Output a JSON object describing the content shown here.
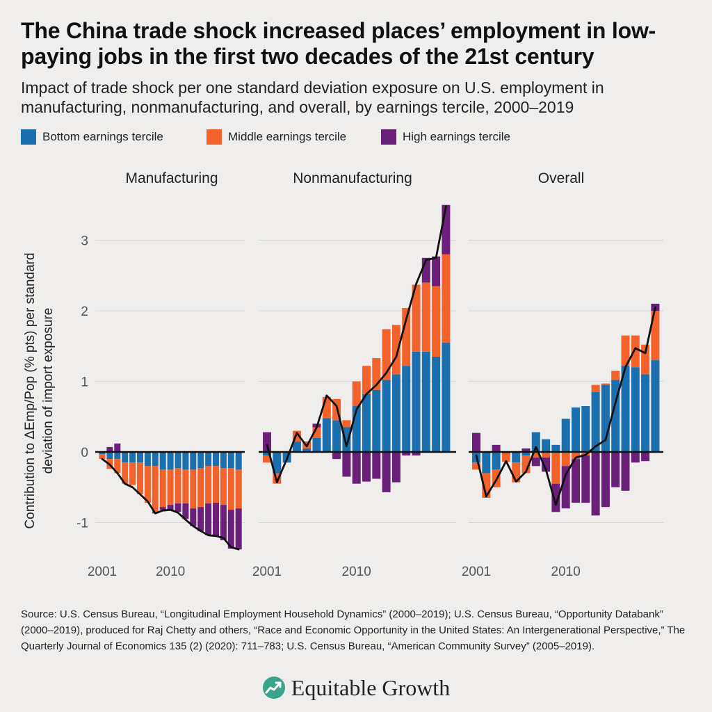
{
  "chart_data": {
    "type": "bar",
    "stacked": true,
    "title": "The China trade shock increased places’ employment in low-paying jobs in the first two decades of the 21st century",
    "subtitle": "Impact of trade shock per one standard deviation exposure on U.S. employment in manufacturing, nonmanufacturing, and overall, by earnings tercile, 2000–2019",
    "ylabel": "Contribution to ΔEmp/Pop (% pts) per standard deviation of import exposure",
    "legend": "top-left",
    "grid": true,
    "x": [
      2001,
      2002,
      2003,
      2004,
      2005,
      2006,
      2007,
      2008,
      2009,
      2010,
      2011,
      2012,
      2013,
      2014,
      2015,
      2016,
      2017,
      2018,
      2019
    ],
    "xticks": [
      2001,
      2010
    ],
    "yticks": [
      -1,
      0,
      1,
      2,
      3
    ],
    "ylim": [
      -1.45,
      3.5
    ],
    "series": [
      {
        "name": "Bottom earnings tercile",
        "color": "#1b6fae"
      },
      {
        "name": "Middle earnings tercile",
        "color": "#f4622b"
      },
      {
        "name": "High earnings tercile",
        "color": "#6a1f79"
      }
    ],
    "line_color": "#111111",
    "panels": [
      {
        "title": "Manufacturing",
        "values": [
          [
            -0.03,
            -0.1,
            -0.1,
            -0.15,
            -0.15,
            -0.15,
            -0.2,
            -0.2,
            -0.25,
            -0.25,
            -0.23,
            -0.25,
            -0.25,
            -0.23,
            -0.2,
            -0.2,
            -0.23,
            -0.23,
            -0.25
          ],
          [
            -0.07,
            -0.14,
            -0.2,
            -0.3,
            -0.32,
            -0.45,
            -0.52,
            -0.65,
            -0.53,
            -0.5,
            -0.5,
            -0.48,
            -0.55,
            -0.55,
            -0.53,
            -0.52,
            -0.52,
            -0.59,
            -0.55
          ],
          [
            0.0,
            0.07,
            0.12,
            0.0,
            0.0,
            0.0,
            0.0,
            -0.02,
            -0.04,
            -0.08,
            -0.12,
            -0.22,
            -0.25,
            -0.34,
            -0.45,
            -0.48,
            -0.5,
            -0.55,
            -0.58
          ]
        ],
        "total": [
          -0.1,
          -0.18,
          -0.3,
          -0.45,
          -0.5,
          -0.6,
          -0.7,
          -0.87,
          -0.83,
          -0.82,
          -0.86,
          -0.96,
          -1.05,
          -1.12,
          -1.18,
          -1.19,
          -1.22,
          -1.35,
          -1.38
        ]
      },
      {
        "title": "Nonmanufacturing",
        "values": [
          [
            -0.05,
            -0.3,
            -0.15,
            0.15,
            0.05,
            0.2,
            0.48,
            0.45,
            0.35,
            0.65,
            0.82,
            0.88,
            1.02,
            1.1,
            1.22,
            1.42,
            1.42,
            1.35,
            1.55
          ],
          [
            -0.1,
            -0.15,
            0.0,
            0.15,
            0.1,
            0.15,
            0.3,
            0.3,
            0.1,
            0.35,
            0.4,
            0.45,
            0.72,
            0.7,
            0.82,
            0.95,
            0.98,
            1.0,
            1.25
          ],
          [
            0.28,
            0.0,
            0.0,
            0.0,
            0.0,
            0.05,
            0.0,
            -0.1,
            -0.35,
            -0.45,
            -0.42,
            -0.38,
            -0.57,
            -0.43,
            -0.05,
            -0.05,
            0.35,
            0.42,
            0.7
          ]
        ],
        "total": [
          0.1,
          -0.43,
          -0.1,
          0.27,
          0.08,
          0.35,
          0.8,
          0.65,
          0.08,
          0.6,
          0.82,
          0.95,
          1.12,
          1.35,
          1.88,
          2.38,
          2.72,
          2.75,
          3.48
        ]
      },
      {
        "title": "Overall",
        "values": [
          [
            -0.15,
            -0.3,
            -0.25,
            -0.02,
            -0.15,
            -0.05,
            0.28,
            0.18,
            0.1,
            0.47,
            0.63,
            0.65,
            0.85,
            0.95,
            1.02,
            1.22,
            1.2,
            1.1,
            1.3
          ],
          [
            -0.1,
            -0.35,
            -0.25,
            -0.12,
            -0.28,
            -0.25,
            -0.08,
            -0.08,
            -0.45,
            -0.2,
            -0.1,
            -0.05,
            0.1,
            0.02,
            0.13,
            0.43,
            0.45,
            0.42,
            0.7
          ],
          [
            0.27,
            0.0,
            0.1,
            0.0,
            0.0,
            0.05,
            -0.12,
            -0.2,
            -0.4,
            -0.6,
            -0.62,
            -0.67,
            -0.9,
            -0.78,
            -0.5,
            -0.55,
            -0.15,
            -0.13,
            0.1
          ]
        ],
        "total": [
          -0.05,
          -0.63,
          -0.4,
          -0.13,
          -0.42,
          -0.28,
          0.07,
          -0.25,
          -0.75,
          -0.32,
          -0.08,
          -0.04,
          0.08,
          0.17,
          0.7,
          1.2,
          1.47,
          1.4,
          2.05
        ]
      }
    ]
  },
  "source": "Source: U.S. Census Bureau, “Longitudinal Employment Household Dynamics” (2000–2019); U.S. Census Bureau, “Opportunity Databank” (2000–2019), produced for Raj Chetty and others, “Race and Economic Opportunity in the United States: An Intergenerational Perspective,” The Quarterly Journal of Economics 135 (2) (2020): 711–783; U.S. Census Bureau, “American Community Survey” (2005–2019).",
  "brand": {
    "name": "Equitable Growth",
    "icon": "equitable-growth-logo-icon",
    "color": "#3aa38b"
  }
}
